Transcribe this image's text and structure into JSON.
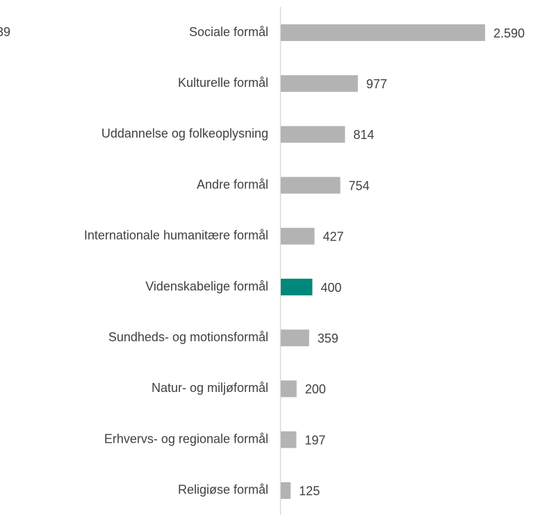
{
  "chart_data": {
    "type": "bar",
    "orientation": "horizontal",
    "annotation": "39",
    "categories": [
      "Sociale formål",
      "Kulturelle formål",
      "Uddannelse og folkeoplysning",
      "Andre formål",
      "Internationale humanitære formål",
      "Videnskabelige formål",
      "Sundheds- og motionsformål",
      "Natur- og miljøformål",
      "Erhvervs- og regionale formål",
      "Religiøse formål"
    ],
    "values": [
      2590,
      977,
      814,
      754,
      427,
      400,
      359,
      200,
      197,
      125
    ],
    "value_labels": [
      "2.590",
      "977",
      "814",
      "754",
      "427",
      "400",
      "359",
      "200",
      "197",
      "125"
    ],
    "colors": [
      "#b3b3b3",
      "#b3b3b3",
      "#b3b3b3",
      "#b3b3b3",
      "#b3b3b3",
      "#00897b",
      "#b3b3b3",
      "#b3b3b3",
      "#b3b3b3",
      "#b3b3b3"
    ],
    "xlim": [
      0,
      2600
    ]
  }
}
